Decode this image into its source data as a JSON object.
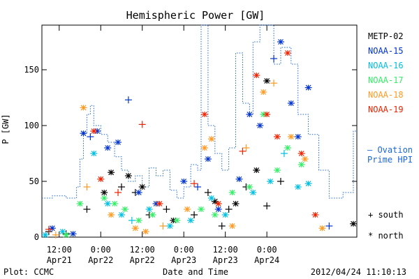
{
  "chart_data": {
    "type": "scatter",
    "title": "Hemispheric Power [GW]",
    "xlabel": "Date and Time",
    "ylabel": "P [GW]",
    "xlim": [
      "2012-04-21 07:00",
      "2012-04-25 02:00"
    ],
    "ylim": [
      0,
      190
    ],
    "y_ticks": [
      0,
      50,
      100,
      150
    ],
    "x_ticks": [
      {
        "label1": "12:00",
        "label2": "Apr21",
        "at": "2012-04-21 12:00"
      },
      {
        "label1": "0:00",
        "label2": "Apr22",
        "at": "2012-04-22 00:00"
      },
      {
        "label1": "12:00",
        "label2": "Apr22",
        "at": "2012-04-22 12:00"
      },
      {
        "label1": "0:00",
        "label2": "Apr23",
        "at": "2012-04-23 00:00"
      },
      {
        "label1": "12:00",
        "label2": "Apr23",
        "at": "2012-04-23 12:00"
      },
      {
        "label1": "0:00",
        "label2": "Apr24",
        "at": "2012-04-24 00:00"
      }
    ],
    "grid": false,
    "legend_position": "right",
    "legend": [
      {
        "name": "METP-02",
        "color": "#000000"
      },
      {
        "name": "NOAA-15",
        "color": "#0033cc"
      },
      {
        "name": "NOAA-16",
        "color": "#00bfe0"
      },
      {
        "name": "NOAA-17",
        "color": "#33ee66"
      },
      {
        "name": "NOAA-18",
        "color": "#ff9922"
      },
      {
        "name": "NOAA-19",
        "color": "#ee2200"
      }
    ],
    "model_label": [
      "— Ovation",
      "Prime HPI"
    ],
    "model_color": "#1a66dd",
    "marker_legend": [
      {
        "symbol": "+",
        "label": "south"
      },
      {
        "symbol": "*",
        "label": "north"
      }
    ],
    "model_series": {
      "name": "Ovation Prime HPI",
      "line": "dotted-step",
      "points": [
        [
          "2012-04-21 07:00",
          35
        ],
        [
          "2012-04-21 10:00",
          37
        ],
        [
          "2012-04-21 14:00",
          35
        ],
        [
          "2012-04-21 17:00",
          45
        ],
        [
          "2012-04-21 18:00",
          70
        ],
        [
          "2012-04-21 19:00",
          93
        ],
        [
          "2012-04-21 20:00",
          110
        ],
        [
          "2012-04-21 21:00",
          118
        ],
        [
          "2012-04-21 22:00",
          100
        ],
        [
          "2012-04-22 00:00",
          92
        ],
        [
          "2012-04-22 02:00",
          85
        ],
        [
          "2012-04-22 04:00",
          72
        ],
        [
          "2012-04-22 06:00",
          60
        ],
        [
          "2012-04-22 08:00",
          50
        ],
        [
          "2012-04-22 10:00",
          55
        ],
        [
          "2012-04-22 12:00",
          45
        ],
        [
          "2012-04-22 14:00",
          62
        ],
        [
          "2012-04-22 16:00",
          55
        ],
        [
          "2012-04-22 18:00",
          60
        ],
        [
          "2012-04-22 20:00",
          42
        ],
        [
          "2012-04-22 22:00",
          35
        ],
        [
          "2012-04-23 00:00",
          45
        ],
        [
          "2012-04-23 02:00",
          65
        ],
        [
          "2012-04-23 04:00",
          60
        ],
        [
          "2012-04-23 05:00",
          190
        ],
        [
          "2012-04-23 06:00",
          190
        ],
        [
          "2012-04-23 07:00",
          100
        ],
        [
          "2012-04-23 09:00",
          75
        ],
        [
          "2012-04-23 11:00",
          60
        ],
        [
          "2012-04-23 13:00",
          80
        ],
        [
          "2012-04-23 15:00",
          165
        ],
        [
          "2012-04-23 17:00",
          120
        ],
        [
          "2012-04-23 19:00",
          110
        ],
        [
          "2012-04-23 20:00",
          175
        ],
        [
          "2012-04-23 22:00",
          190
        ],
        [
          "2012-04-24 02:00",
          155
        ],
        [
          "2012-04-24 04:00",
          170
        ],
        [
          "2012-04-24 07:00",
          155
        ],
        [
          "2012-04-24 09:00",
          110
        ],
        [
          "2012-04-24 12:00",
          92
        ],
        [
          "2012-04-24 15:00",
          60
        ],
        [
          "2012-04-24 18:00",
          35
        ],
        [
          "2012-04-24 22:00",
          40
        ],
        [
          "2012-04-25 01:00",
          95
        ]
      ]
    },
    "series": [
      {
        "name": "METP-02",
        "color": "#000000",
        "points": [
          [
            "2012-04-21 09:00",
            5,
            "south"
          ],
          [
            "2012-04-21 14:00",
            3,
            "south"
          ],
          [
            "2012-04-21 20:00",
            25,
            "south"
          ],
          [
            "2012-04-22 01:00",
            40,
            "north"
          ],
          [
            "2012-04-22 03:00",
            58,
            "north"
          ],
          [
            "2012-04-22 06:00",
            45,
            "south"
          ],
          [
            "2012-04-22 08:00",
            55,
            "north"
          ],
          [
            "2012-04-22 10:00",
            40,
            "south"
          ],
          [
            "2012-04-22 12:00",
            45,
            "north"
          ],
          [
            "2012-04-22 14:00",
            20,
            "south"
          ],
          [
            "2012-04-22 19:00",
            25,
            "south"
          ],
          [
            "2012-04-22 21:00",
            15,
            "north"
          ],
          [
            "2012-04-23 03:00",
            20,
            "south"
          ],
          [
            "2012-04-23 07:00",
            40,
            "south"
          ],
          [
            "2012-04-23 09:00",
            32,
            "north"
          ],
          [
            "2012-04-23 11:00",
            10,
            "south"
          ],
          [
            "2012-04-23 13:00",
            25,
            "south"
          ],
          [
            "2012-04-23 15:00",
            30,
            "north"
          ],
          [
            "2012-04-23 18:00",
            45,
            "south"
          ],
          [
            "2012-04-23 21:00",
            60,
            "north"
          ],
          [
            "2012-04-24 00:00",
            140,
            "north"
          ],
          [
            "2012-04-24 00:00",
            28,
            "south"
          ],
          [
            "2012-04-24 04:00",
            50,
            "south"
          ],
          [
            "2012-04-25 01:00",
            12,
            "north"
          ]
        ]
      },
      {
        "name": "NOAA-15",
        "color": "#0033cc",
        "points": [
          [
            "2012-04-21 10:00",
            8,
            "north"
          ],
          [
            "2012-04-21 16:00",
            3,
            "north"
          ],
          [
            "2012-04-21 19:00",
            93,
            "north"
          ],
          [
            "2012-04-21 21:00",
            90,
            "south"
          ],
          [
            "2012-04-21 23:00",
            95,
            "north"
          ],
          [
            "2012-04-22 02:00",
            80,
            "north"
          ],
          [
            "2012-04-22 05:00",
            85,
            "north"
          ],
          [
            "2012-04-22 08:00",
            123,
            "south"
          ],
          [
            "2012-04-22 11:00",
            40,
            "north"
          ],
          [
            "2012-04-22 16:00",
            30,
            "north"
          ],
          [
            "2012-04-23 00:00",
            50,
            "north"
          ],
          [
            "2012-04-23 04:00",
            45,
            "south"
          ],
          [
            "2012-04-23 07:00",
            70,
            "north"
          ],
          [
            "2012-04-23 10:00",
            25,
            "north"
          ],
          [
            "2012-04-23 16:00",
            52,
            "north"
          ],
          [
            "2012-04-23 19:00",
            110,
            "north"
          ],
          [
            "2012-04-23 22:00",
            100,
            "north"
          ],
          [
            "2012-04-24 02:00",
            160,
            "south"
          ],
          [
            "2012-04-24 04:00",
            175,
            "north"
          ],
          [
            "2012-04-24 07:00",
            120,
            "north"
          ],
          [
            "2012-04-24 09:00",
            90,
            "north"
          ],
          [
            "2012-04-24 12:00",
            134,
            "north"
          ],
          [
            "2012-04-24 18:00",
            10,
            "south"
          ]
        ]
      },
      {
        "name": "NOAA-16",
        "color": "#00bfe0",
        "points": [
          [
            "2012-04-21 08:00",
            2,
            "north"
          ],
          [
            "2012-04-21 13:00",
            5,
            "north"
          ],
          [
            "2012-04-21 22:00",
            75,
            "north"
          ],
          [
            "2012-04-22 02:00",
            30,
            "north"
          ],
          [
            "2012-04-22 06:00",
            20,
            "north"
          ],
          [
            "2012-04-22 09:00",
            15,
            "south"
          ],
          [
            "2012-04-22 14:00",
            25,
            "north"
          ],
          [
            "2012-04-22 20:00",
            10,
            "north"
          ],
          [
            "2012-04-23 02:00",
            15,
            "north"
          ],
          [
            "2012-04-23 08:00",
            35,
            "north"
          ],
          [
            "2012-04-23 12:00",
            20,
            "north"
          ],
          [
            "2012-04-23 20:00",
            40,
            "north"
          ],
          [
            "2012-04-24 01:00",
            50,
            "north"
          ],
          [
            "2012-04-24 05:00",
            75,
            "south"
          ],
          [
            "2012-04-24 09:00",
            45,
            "north"
          ],
          [
            "2012-04-24 12:00",
            48,
            "north"
          ]
        ]
      },
      {
        "name": "NOAA-17",
        "color": "#33ee66",
        "points": [
          [
            "2012-04-21 14:00",
            2,
            "north"
          ],
          [
            "2012-04-21 18:00",
            30,
            "north"
          ],
          [
            "2012-04-22 01:00",
            35,
            "north"
          ],
          [
            "2012-04-22 04:00",
            30,
            "north"
          ],
          [
            "2012-04-22 07:00",
            25,
            "north"
          ],
          [
            "2012-04-22 11:00",
            15,
            "north"
          ],
          [
            "2012-04-22 15:00",
            20,
            "north"
          ],
          [
            "2012-04-22 22:00",
            15,
            "north"
          ],
          [
            "2012-04-23 05:00",
            25,
            "north"
          ],
          [
            "2012-04-23 09:00",
            20,
            "north"
          ],
          [
            "2012-04-23 14:00",
            40,
            "north"
          ],
          [
            "2012-04-23 19:00",
            45,
            "north"
          ],
          [
            "2012-04-23 23:00",
            110,
            "north"
          ],
          [
            "2012-04-24 03:00",
            60,
            "north"
          ],
          [
            "2012-04-24 06:00",
            80,
            "north"
          ],
          [
            "2012-04-24 10:00",
            65,
            "north"
          ]
        ]
      },
      {
        "name": "NOAA-18",
        "color": "#ff9922",
        "points": [
          [
            "2012-04-21 11:00",
            2,
            "south"
          ],
          [
            "2012-04-21 19:00",
            116,
            "north"
          ],
          [
            "2012-04-21 20:00",
            45,
            "south"
          ],
          [
            "2012-04-22 03:00",
            20,
            "north"
          ],
          [
            "2012-04-22 10:00",
            8,
            "north"
          ],
          [
            "2012-04-22 13:00",
            5,
            "north"
          ],
          [
            "2012-04-22 18:00",
            10,
            "south"
          ],
          [
            "2012-04-23 01:00",
            25,
            "north"
          ],
          [
            "2012-04-23 06:00",
            80,
            "north"
          ],
          [
            "2012-04-23 08:00",
            88,
            "north"
          ],
          [
            "2012-04-23 14:00",
            10,
            "north"
          ],
          [
            "2012-04-23 18:00",
            80,
            "south"
          ],
          [
            "2012-04-23 23:00",
            130,
            "north"
          ],
          [
            "2012-04-24 02:00",
            138,
            "south"
          ],
          [
            "2012-04-24 07:00",
            90,
            "north"
          ],
          [
            "2012-04-24 11:00",
            70,
            "north"
          ],
          [
            "2012-04-24 16:00",
            8,
            "north"
          ]
        ]
      },
      {
        "name": "NOAA-19",
        "color": "#ee2200",
        "points": [
          [
            "2012-04-21 09:00",
            7,
            "south"
          ],
          [
            "2012-04-21 22:00",
            95,
            "north"
          ],
          [
            "2012-04-22 00:00",
            52,
            "north"
          ],
          [
            "2012-04-22 05:00",
            40,
            "south"
          ],
          [
            "2012-04-22 12:00",
            101,
            "south"
          ],
          [
            "2012-04-22 17:00",
            30,
            "north"
          ],
          [
            "2012-04-23 03:00",
            48,
            "south"
          ],
          [
            "2012-04-23 06:00",
            110,
            "north"
          ],
          [
            "2012-04-23 10:00",
            30,
            "north"
          ],
          [
            "2012-04-23 17:00",
            77,
            "south"
          ],
          [
            "2012-04-23 21:00",
            145,
            "north"
          ],
          [
            "2012-04-24 00:00",
            110,
            "north"
          ],
          [
            "2012-04-24 03:00",
            90,
            "north"
          ],
          [
            "2012-04-24 06:00",
            165,
            "north"
          ],
          [
            "2012-04-24 10:00",
            75,
            "north"
          ],
          [
            "2012-04-24 14:00",
            20,
            "north"
          ]
        ]
      }
    ]
  },
  "footer": {
    "left": "Plot: CCMC",
    "center": "Date and Time",
    "right": "2012/04/24 11:10:13"
  }
}
